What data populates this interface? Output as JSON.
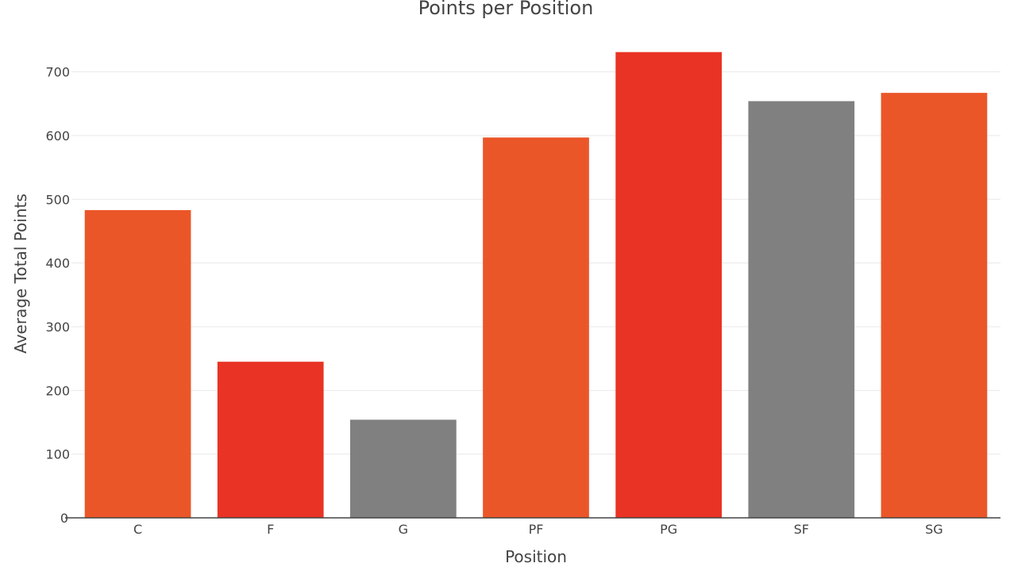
{
  "chart_data": {
    "type": "bar",
    "title": "Points per Position",
    "xlabel": "Position",
    "ylabel": "Average Total Points",
    "categories": [
      "C",
      "F",
      "G",
      "PF",
      "PG",
      "SF",
      "SG"
    ],
    "values": [
      483,
      245,
      154,
      597,
      731,
      654,
      667
    ],
    "bar_colors": [
      "#EB5628",
      "#E93324",
      "#808080",
      "#EB5628",
      "#E93324",
      "#808080",
      "#EB5628"
    ],
    "ylim": [
      0,
      750
    ],
    "yticks": [
      0,
      100,
      200,
      300,
      400,
      500,
      600,
      700
    ],
    "grid": true,
    "legend": "none"
  }
}
